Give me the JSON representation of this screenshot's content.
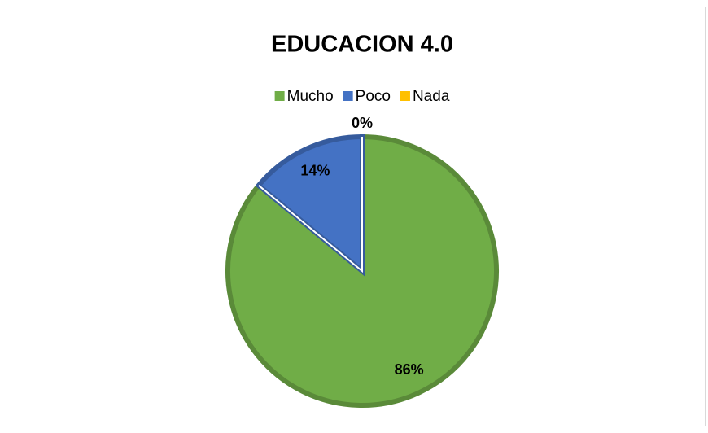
{
  "chart_data": {
    "type": "pie",
    "title": "EDUCACION 4.0",
    "categories": [
      "Mucho",
      "Poco",
      "Nada"
    ],
    "values": [
      86,
      14,
      0
    ],
    "value_labels": [
      "86%",
      "14%",
      "0%"
    ],
    "colors": [
      "#70AD47",
      "#4472C4",
      "#FFC000"
    ],
    "legend": "top"
  }
}
